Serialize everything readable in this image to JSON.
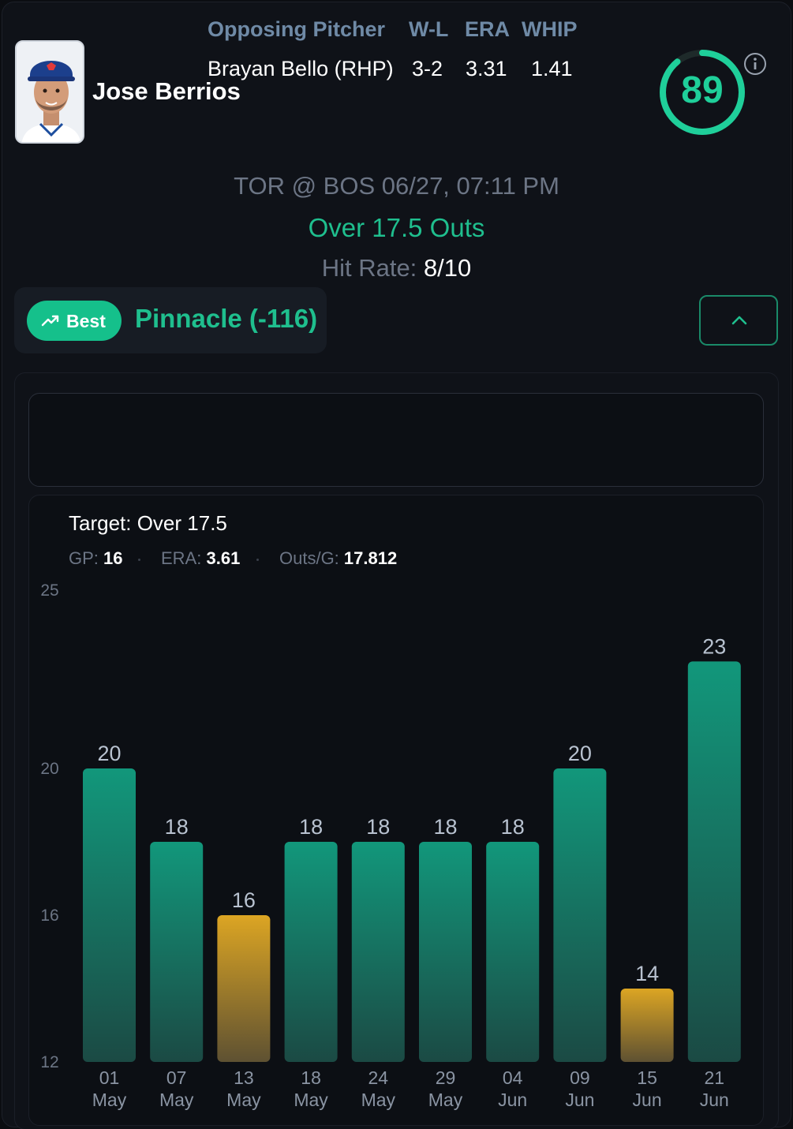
{
  "player": {
    "name": "Jose Berrios",
    "avatar_icon": "player-headshot"
  },
  "score": {
    "value": "89",
    "fraction": 0.89,
    "color": "#1fcf9a"
  },
  "game": {
    "matchup": "TOR @ BOS 06/27, 07:11 PM",
    "prop": "Over 17.5 Outs",
    "hit_rate_label": "Hit Rate:",
    "hit_rate_value": "8/10"
  },
  "book": {
    "badge_label": "Best",
    "badge_icon": "trending-up-icon",
    "name": "Pinnacle (-116)"
  },
  "collapse_icon": "chevron-up-icon",
  "opposing": {
    "headers": [
      "Opposing Pitcher",
      "W-L",
      "ERA",
      "WHIP"
    ],
    "row": [
      "Brayan Bello (RHP)",
      "3-2",
      "3.31",
      "1.41"
    ]
  },
  "chart_header": {
    "target": "Target: Over 17.5",
    "gp_label": "GP:",
    "gp_value": "16",
    "era_label": "ERA:",
    "era_value": "3.61",
    "outs_label": "Outs/G:",
    "outs_value": "17.812"
  },
  "colors": {
    "over": "#15967a",
    "under": "#d9a21c",
    "accent": "#1fbf8e"
  },
  "chart_data": {
    "type": "bar",
    "title": "Target: Over 17.5",
    "target": 17.5,
    "categories": [
      [
        "01",
        "May"
      ],
      [
        "07",
        "May"
      ],
      [
        "13",
        "May"
      ],
      [
        "18",
        "May"
      ],
      [
        "24",
        "May"
      ],
      [
        "29",
        "May"
      ],
      [
        "04",
        "Jun"
      ],
      [
        "09",
        "Jun"
      ],
      [
        "15",
        "Jun"
      ],
      [
        "21",
        "Jun"
      ]
    ],
    "values": [
      20,
      18,
      16,
      18,
      18,
      18,
      18,
      20,
      14,
      23
    ],
    "yticks": [
      25,
      20,
      16,
      12
    ],
    "ylim": [
      12,
      25
    ]
  }
}
